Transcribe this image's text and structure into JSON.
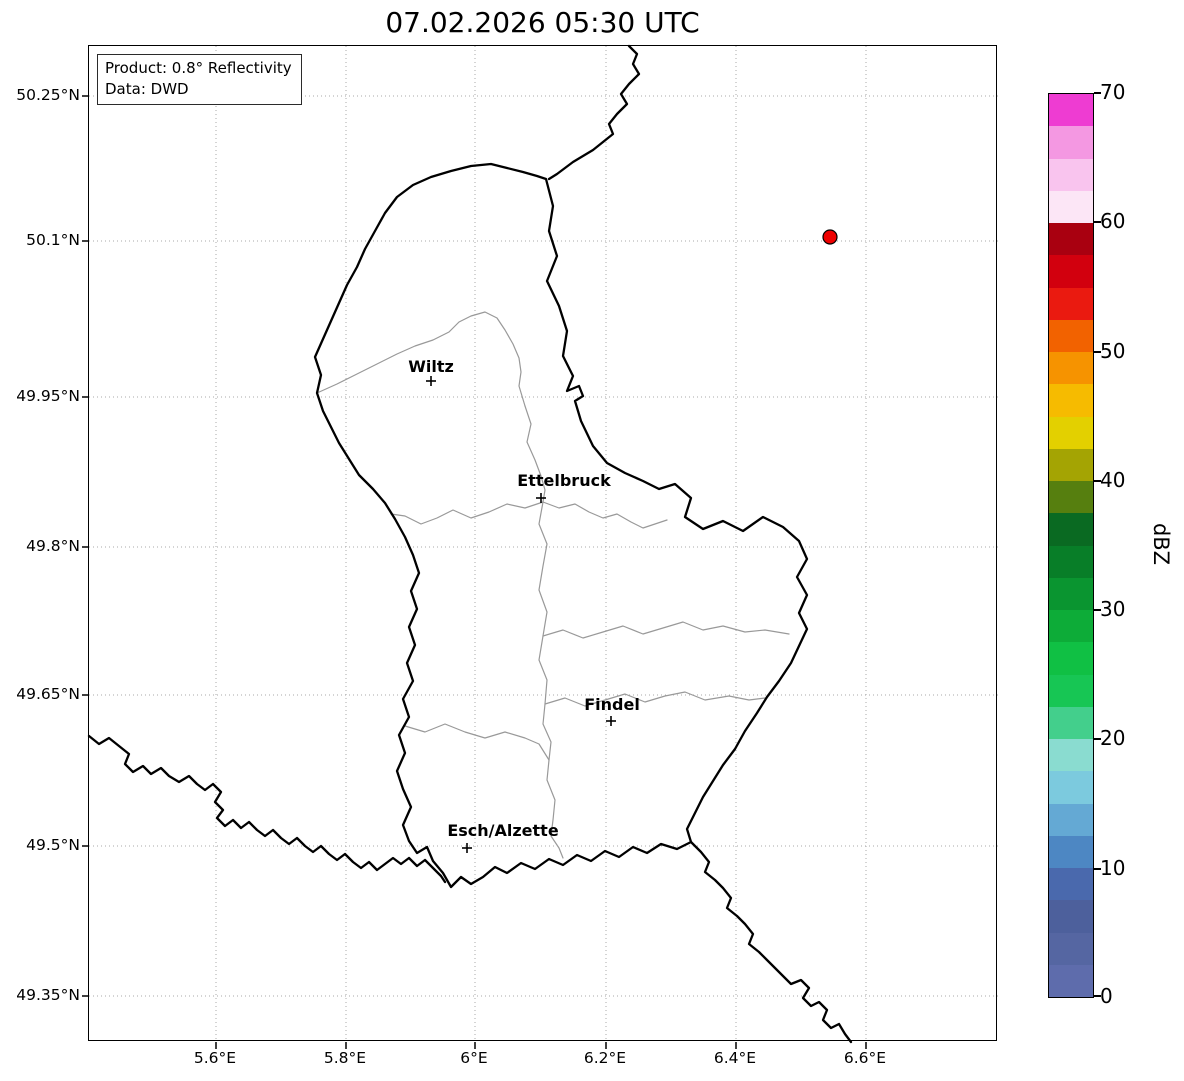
{
  "title": "07.02.2026 05:30 UTC",
  "info_box": {
    "product": "Product: 0.8° Reflectivity",
    "source": "Data: DWD"
  },
  "axes": {
    "x_ticks": [
      "5.6°E",
      "5.8°E",
      "6°E",
      "6.2°E",
      "6.4°E",
      "6.6°E"
    ],
    "y_ticks": [
      "50.25°N",
      "50.1°N",
      "49.95°N",
      "49.8°N",
      "49.65°N",
      "49.5°N",
      "49.35°N"
    ]
  },
  "map": {
    "cities": [
      {
        "name": "Wiltz"
      },
      {
        "name": "Ettelbruck"
      },
      {
        "name": "Findel"
      },
      {
        "name": "Esch/Alzette"
      }
    ],
    "radar_echo": {
      "color": "#ee0000",
      "edge_color": "#000000"
    },
    "border_color": "#000000",
    "district_border_color": "#999999"
  },
  "colorbar": {
    "label": "dBZ",
    "unit_min": 0,
    "unit_max": 70,
    "tick_labels": [
      "70",
      "60",
      "50",
      "40",
      "30",
      "20",
      "10",
      "0"
    ],
    "colors_bottom_to_top": [
      "#5e6cac",
      "#5566a2",
      "#4d609c",
      "#4a69ad",
      "#4d87c3",
      "#64a9d4",
      "#7ccade",
      "#8adcd0",
      "#43cf8c",
      "#17c654",
      "#10c044",
      "#0dac38",
      "#0a9530",
      "#087e28",
      "#0a6a22",
      "#567f0f",
      "#a4a403",
      "#e3d000",
      "#f6bb00",
      "#f69300",
      "#f26200",
      "#ea1a10",
      "#d2000e",
      "#a90010",
      "#fce6f6",
      "#f9c4ee",
      "#f498e2",
      "#ee3cd2"
    ]
  }
}
